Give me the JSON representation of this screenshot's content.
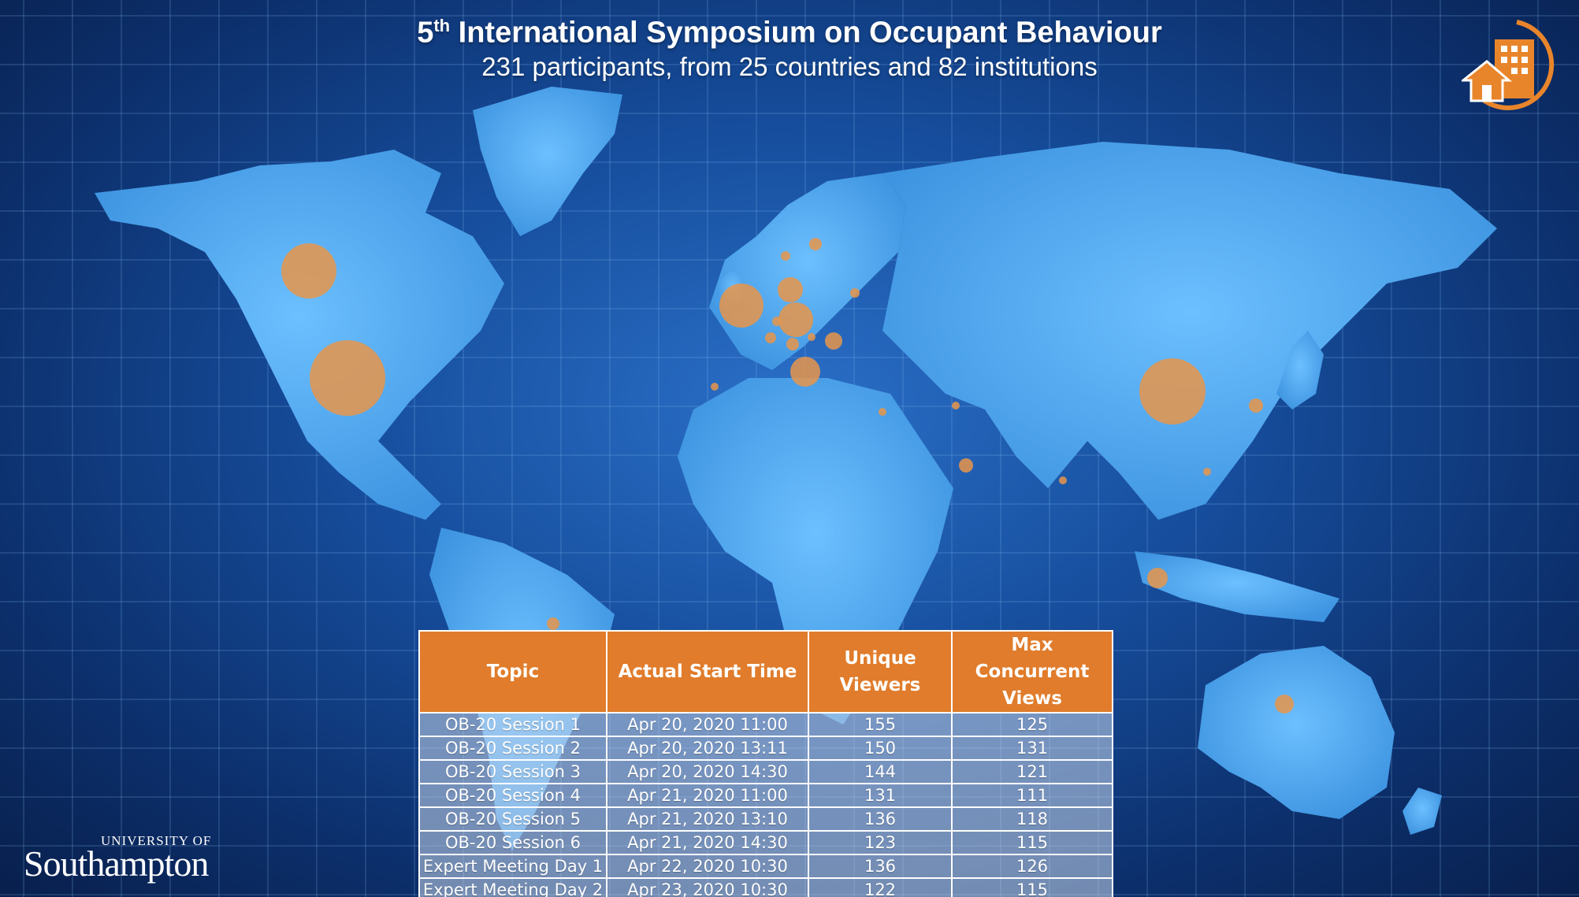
{
  "title": {
    "prefix": "5",
    "sup": "th",
    "rest": " International Symposium on Occupant Behaviour"
  },
  "subtitle": "231 participants, from 25 countries and 82 institutions",
  "university": {
    "small": "UNIVERSITY OF",
    "big": "Southampton"
  },
  "colors": {
    "accent": "#e07c2b",
    "map_land": "#5aaef0",
    "bubble": "#e8954a"
  },
  "logo_icon": "house-building-logo-icon",
  "table": {
    "headers": [
      "Topic",
      "Actual Start Time",
      "Unique Viewers",
      "Max Concurrent Views"
    ],
    "rows": [
      [
        "OB-20 Session 1",
        "Apr 20, 2020 11:00",
        "155",
        "125"
      ],
      [
        "OB-20 Session 2",
        "Apr 20, 2020 13:11",
        "150",
        "131"
      ],
      [
        "OB-20 Session 3",
        "Apr 20, 2020 14:30",
        "144",
        "121"
      ],
      [
        "OB-20 Session 4",
        "Apr 21, 2020 11:00",
        "131",
        "111"
      ],
      [
        "OB-20 Session 5",
        "Apr 21, 2020 13:10",
        "136",
        "118"
      ],
      [
        "OB-20 Session 6",
        "Apr 21, 2020 14:30",
        "123",
        "115"
      ],
      [
        "Expert Meeting Day 1",
        "Apr 22, 2020 10:30",
        "136",
        "126"
      ],
      [
        "Expert Meeting Day 2",
        "Apr 23, 2020 10:30",
        "122",
        "115"
      ]
    ]
  }
}
